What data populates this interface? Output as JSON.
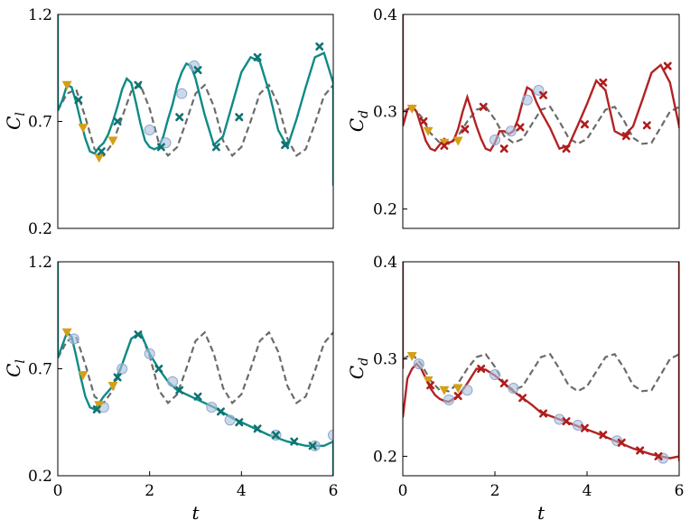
{
  "colors": {
    "reference": "#6b6b6b",
    "lift": "#0f8a86",
    "drag": "#b22224",
    "triangle": "#d4a017",
    "circle": "#a9bfdc",
    "x_marker_lift": "#0f7372",
    "x_marker_drag": "#b01c1c"
  },
  "labels": {
    "cl": "C",
    "cl_sub": "l",
    "cd": "C",
    "cd_sub": "d",
    "t": "t"
  },
  "chart_data": [
    {
      "type": "line",
      "panel": "top-left",
      "ylabel": "C_l",
      "xlim": [
        0,
        6
      ],
      "ylim": [
        0.2,
        1.2
      ],
      "yticks": [
        "0.2",
        "0.7",
        "1.2"
      ],
      "xticks": [],
      "series": [
        {
          "style": "dashed",
          "role": "reference",
          "x": [
            0,
            0.2,
            0.4,
            0.6,
            0.8,
            1.0,
            1.2,
            1.4,
            1.6,
            1.8,
            2.0,
            2.2,
            2.4,
            2.6,
            2.8,
            3.0,
            3.2,
            3.4,
            3.6,
            3.8,
            4.0,
            4.2,
            4.4,
            4.6,
            4.8,
            5.0,
            5.2,
            5.4,
            5.6,
            5.8,
            6.0
          ],
          "y": [
            0.75,
            0.83,
            0.85,
            0.72,
            0.57,
            0.54,
            0.6,
            0.72,
            0.84,
            0.87,
            0.76,
            0.6,
            0.54,
            0.58,
            0.7,
            0.83,
            0.87,
            0.77,
            0.61,
            0.54,
            0.58,
            0.7,
            0.83,
            0.87,
            0.78,
            0.62,
            0.54,
            0.57,
            0.69,
            0.82,
            0.87
          ]
        },
        {
          "style": "solid",
          "role": "prediction",
          "x": [
            0,
            0.1,
            0.2,
            0.3,
            0.4,
            0.5,
            0.6,
            0.7,
            0.8,
            0.9,
            1.0,
            1.1,
            1.2,
            1.3,
            1.4,
            1.5,
            1.6,
            1.7,
            1.8,
            1.9,
            2.0,
            2.1,
            2.2,
            2.3,
            2.4,
            2.5,
            2.6,
            2.7,
            2.8,
            2.9,
            3.0,
            3.2,
            3.4,
            3.6,
            3.8,
            4.0,
            4.2,
            4.4,
            4.6,
            4.8,
            5.0,
            5.2,
            5.4,
            5.6,
            5.8,
            6.0
          ],
          "y": [
            0.75,
            0.8,
            0.87,
            0.86,
            0.79,
            0.7,
            0.62,
            0.56,
            0.55,
            0.58,
            0.6,
            0.64,
            0.7,
            0.77,
            0.85,
            0.9,
            0.88,
            0.79,
            0.69,
            0.61,
            0.58,
            0.57,
            0.58,
            0.63,
            0.71,
            0.78,
            0.87,
            0.93,
            0.97,
            0.96,
            0.9,
            0.73,
            0.59,
            0.63,
            0.78,
            0.93,
            1.0,
            0.98,
            0.84,
            0.66,
            0.58,
            0.71,
            0.86,
            1.0,
            1.02,
            0.88
          ]
        }
      ],
      "markers": {
        "triangle": [
          [
            0.2,
            0.87
          ],
          [
            0.55,
            0.67
          ],
          [
            0.9,
            0.53
          ],
          [
            1.2,
            0.61
          ]
        ],
        "circle": [
          [
            2.0,
            0.66
          ],
          [
            2.35,
            0.6
          ],
          [
            2.7,
            0.83
          ],
          [
            2.97,
            0.96
          ]
        ],
        "x": [
          [
            0.45,
            0.8
          ],
          [
            0.95,
            0.56
          ],
          [
            1.3,
            0.7
          ],
          [
            1.75,
            0.87
          ],
          [
            2.25,
            0.58
          ],
          [
            2.65,
            0.72
          ],
          [
            3.05,
            0.94
          ],
          [
            3.45,
            0.58
          ],
          [
            3.95,
            0.72
          ],
          [
            4.35,
            1.0
          ],
          [
            4.95,
            0.59
          ],
          [
            5.7,
            1.05
          ]
        ]
      }
    },
    {
      "type": "line",
      "panel": "top-right",
      "ylabel": "C_d",
      "xlim": [
        0,
        6
      ],
      "ylim": [
        0.18,
        0.4
      ],
      "yticks": [
        "0.2",
        "0.3",
        "0.4"
      ],
      "xticks": [],
      "series": [
        {
          "style": "dashed",
          "role": "reference",
          "x": [
            0,
            0.2,
            0.4,
            0.6,
            0.8,
            1.0,
            1.2,
            1.4,
            1.6,
            1.8,
            2.0,
            2.2,
            2.4,
            2.6,
            2.8,
            3.0,
            3.2,
            3.4,
            3.6,
            3.8,
            4.0,
            4.2,
            4.4,
            4.6,
            4.8,
            5.0,
            5.2,
            5.4,
            5.6,
            5.8,
            6.0
          ],
          "y": [
            0.3,
            0.305,
            0.295,
            0.278,
            0.268,
            0.267,
            0.275,
            0.29,
            0.302,
            0.305,
            0.292,
            0.275,
            0.268,
            0.272,
            0.287,
            0.302,
            0.305,
            0.29,
            0.273,
            0.267,
            0.272,
            0.287,
            0.302,
            0.305,
            0.291,
            0.273,
            0.267,
            0.268,
            0.284,
            0.3,
            0.305
          ]
        },
        {
          "style": "solid",
          "role": "prediction",
          "x": [
            0,
            0.1,
            0.2,
            0.3,
            0.4,
            0.5,
            0.6,
            0.7,
            0.8,
            0.9,
            1.0,
            1.1,
            1.2,
            1.3,
            1.4,
            1.5,
            1.6,
            1.7,
            1.8,
            1.9,
            2.0,
            2.1,
            2.2,
            2.3,
            2.4,
            2.5,
            2.6,
            2.7,
            2.8,
            2.9,
            3.0,
            3.2,
            3.4,
            3.6,
            3.8,
            4.0,
            4.2,
            4.4,
            4.6,
            4.8,
            5.0,
            5.2,
            5.4,
            5.6,
            5.8,
            6.0
          ],
          "y": [
            0.285,
            0.302,
            0.306,
            0.3,
            0.285,
            0.27,
            0.262,
            0.26,
            0.266,
            0.272,
            0.268,
            0.27,
            0.282,
            0.3,
            0.315,
            0.3,
            0.285,
            0.272,
            0.262,
            0.26,
            0.268,
            0.28,
            0.28,
            0.277,
            0.28,
            0.292,
            0.31,
            0.325,
            0.322,
            0.31,
            0.3,
            0.283,
            0.262,
            0.265,
            0.286,
            0.308,
            0.332,
            0.322,
            0.28,
            0.275,
            0.285,
            0.312,
            0.34,
            0.348,
            0.33,
            0.285
          ]
        }
      ],
      "markers": {
        "triangle": [
          [
            0.2,
            0.303
          ],
          [
            0.55,
            0.28
          ],
          [
            0.9,
            0.268
          ],
          [
            1.2,
            0.27
          ]
        ],
        "circle": [
          [
            2.0,
            0.271
          ],
          [
            2.35,
            0.28
          ],
          [
            2.7,
            0.312
          ],
          [
            2.95,
            0.322
          ]
        ],
        "x": [
          [
            0.45,
            0.29
          ],
          [
            0.9,
            0.265
          ],
          [
            1.35,
            0.282
          ],
          [
            1.75,
            0.305
          ],
          [
            2.2,
            0.262
          ],
          [
            2.55,
            0.284
          ],
          [
            3.05,
            0.317
          ],
          [
            3.55,
            0.262
          ],
          [
            3.95,
            0.287
          ],
          [
            4.35,
            0.33
          ],
          [
            4.85,
            0.275
          ],
          [
            5.3,
            0.286
          ],
          [
            5.75,
            0.347
          ]
        ]
      }
    },
    {
      "type": "line",
      "panel": "bottom-left",
      "ylabel": "C_l",
      "xlabel": "t",
      "xlim": [
        0,
        6
      ],
      "ylim": [
        0.2,
        1.2
      ],
      "yticks": [
        "0.2",
        "0.7",
        "1.2"
      ],
      "xticks": [
        "0",
        "2",
        "4",
        "6"
      ],
      "series": [
        {
          "style": "dashed",
          "role": "reference",
          "x": [
            0,
            0.2,
            0.4,
            0.6,
            0.8,
            1.0,
            1.2,
            1.4,
            1.6,
            1.8,
            2.0,
            2.2,
            2.4,
            2.6,
            2.8,
            3.0,
            3.2,
            3.4,
            3.6,
            3.8,
            4.0,
            4.2,
            4.4,
            4.6,
            4.8,
            5.0,
            5.2,
            5.4,
            5.6,
            5.8,
            6.0
          ],
          "y": [
            0.75,
            0.83,
            0.85,
            0.72,
            0.57,
            0.54,
            0.6,
            0.72,
            0.84,
            0.87,
            0.76,
            0.6,
            0.54,
            0.58,
            0.7,
            0.83,
            0.87,
            0.77,
            0.61,
            0.54,
            0.58,
            0.7,
            0.83,
            0.87,
            0.78,
            0.62,
            0.54,
            0.57,
            0.69,
            0.82,
            0.87
          ]
        },
        {
          "style": "solid",
          "role": "prediction",
          "x": [
            0,
            0.1,
            0.2,
            0.3,
            0.4,
            0.5,
            0.6,
            0.7,
            0.8,
            0.9,
            1.0,
            1.2,
            1.4,
            1.6,
            1.8,
            2.0,
            2.2,
            2.4,
            2.6,
            2.8,
            3.0,
            3.4,
            3.8,
            4.2,
            4.6,
            5.0,
            5.4,
            5.8,
            6.0
          ],
          "y": [
            0.75,
            0.81,
            0.87,
            0.85,
            0.76,
            0.66,
            0.57,
            0.52,
            0.51,
            0.54,
            0.57,
            0.62,
            0.72,
            0.84,
            0.87,
            0.77,
            0.7,
            0.64,
            0.6,
            0.58,
            0.56,
            0.52,
            0.47,
            0.43,
            0.39,
            0.36,
            0.34,
            0.34,
            0.36
          ]
        }
      ],
      "markers": {
        "triangle": [
          [
            0.2,
            0.87
          ],
          [
            0.55,
            0.67
          ],
          [
            0.9,
            0.53
          ],
          [
            1.2,
            0.62
          ]
        ],
        "circle": [
          [
            0.35,
            0.84
          ],
          [
            1.0,
            0.52
          ],
          [
            1.4,
            0.7
          ],
          [
            2.0,
            0.77
          ],
          [
            2.5,
            0.64
          ],
          [
            3.35,
            0.52
          ],
          [
            3.75,
            0.46
          ],
          [
            4.75,
            0.39
          ],
          [
            5.6,
            0.34
          ],
          [
            6.0,
            0.39
          ]
        ],
        "x": [
          [
            0.85,
            0.51
          ],
          [
            1.3,
            0.66
          ],
          [
            1.75,
            0.86
          ],
          [
            2.2,
            0.7
          ],
          [
            2.65,
            0.6
          ],
          [
            3.05,
            0.57
          ],
          [
            3.55,
            0.5
          ],
          [
            3.95,
            0.45
          ],
          [
            4.35,
            0.42
          ],
          [
            4.75,
            0.39
          ],
          [
            5.15,
            0.36
          ],
          [
            5.55,
            0.34
          ]
        ]
      }
    },
    {
      "type": "line",
      "panel": "bottom-right",
      "ylabel": "C_d",
      "xlabel": "t",
      "xlim": [
        0,
        6
      ],
      "ylim": [
        0.18,
        0.4
      ],
      "yticks": [
        "0.2",
        "0.3",
        "0.4"
      ],
      "xticks": [
        "0",
        "2",
        "4",
        "6"
      ],
      "series": [
        {
          "style": "dashed",
          "role": "reference",
          "x": [
            0,
            0.2,
            0.4,
            0.6,
            0.8,
            1.0,
            1.2,
            1.4,
            1.6,
            1.8,
            2.0,
            2.2,
            2.4,
            2.6,
            2.8,
            3.0,
            3.2,
            3.4,
            3.6,
            3.8,
            4.0,
            4.2,
            4.4,
            4.6,
            4.8,
            5.0,
            5.2,
            5.4,
            5.6,
            5.8,
            6.0
          ],
          "y": [
            0.3,
            0.305,
            0.295,
            0.278,
            0.268,
            0.267,
            0.275,
            0.29,
            0.302,
            0.305,
            0.292,
            0.275,
            0.268,
            0.272,
            0.287,
            0.302,
            0.305,
            0.29,
            0.273,
            0.267,
            0.272,
            0.287,
            0.302,
            0.305,
            0.291,
            0.273,
            0.267,
            0.268,
            0.284,
            0.3,
            0.305
          ]
        },
        {
          "style": "solid",
          "role": "prediction",
          "x": [
            0,
            0.1,
            0.2,
            0.3,
            0.4,
            0.5,
            0.6,
            0.7,
            0.8,
            0.9,
            1.0,
            1.2,
            1.4,
            1.6,
            1.8,
            2.0,
            2.2,
            2.4,
            2.6,
            2.8,
            3.0,
            3.4,
            3.8,
            4.2,
            4.6,
            5.0,
            5.4,
            5.8,
            6.0
          ],
          "y": [
            0.24,
            0.28,
            0.29,
            0.295,
            0.29,
            0.28,
            0.27,
            0.263,
            0.259,
            0.257,
            0.256,
            0.262,
            0.275,
            0.29,
            0.289,
            0.283,
            0.275,
            0.267,
            0.26,
            0.253,
            0.245,
            0.238,
            0.231,
            0.224,
            0.216,
            0.208,
            0.202,
            0.198,
            0.2
          ]
        }
      ],
      "markers": {
        "triangle": [
          [
            0.2,
            0.303
          ],
          [
            0.55,
            0.278
          ],
          [
            0.9,
            0.268
          ],
          [
            1.2,
            0.27
          ]
        ],
        "circle": [
          [
            0.35,
            0.295
          ],
          [
            1.0,
            0.258
          ],
          [
            1.4,
            0.268
          ],
          [
            2.0,
            0.284
          ],
          [
            2.4,
            0.27
          ],
          [
            3.4,
            0.238
          ],
          [
            3.8,
            0.232
          ],
          [
            4.65,
            0.216
          ],
          [
            5.65,
            0.198
          ]
        ],
        "x": [
          [
            0.6,
            0.273
          ],
          [
            1.2,
            0.262
          ],
          [
            1.7,
            0.29
          ],
          [
            2.2,
            0.275
          ],
          [
            2.6,
            0.26
          ],
          [
            3.05,
            0.244
          ],
          [
            3.55,
            0.236
          ],
          [
            3.95,
            0.229
          ],
          [
            4.35,
            0.222
          ],
          [
            4.75,
            0.214
          ],
          [
            5.15,
            0.206
          ],
          [
            5.55,
            0.2
          ]
        ]
      }
    }
  ]
}
